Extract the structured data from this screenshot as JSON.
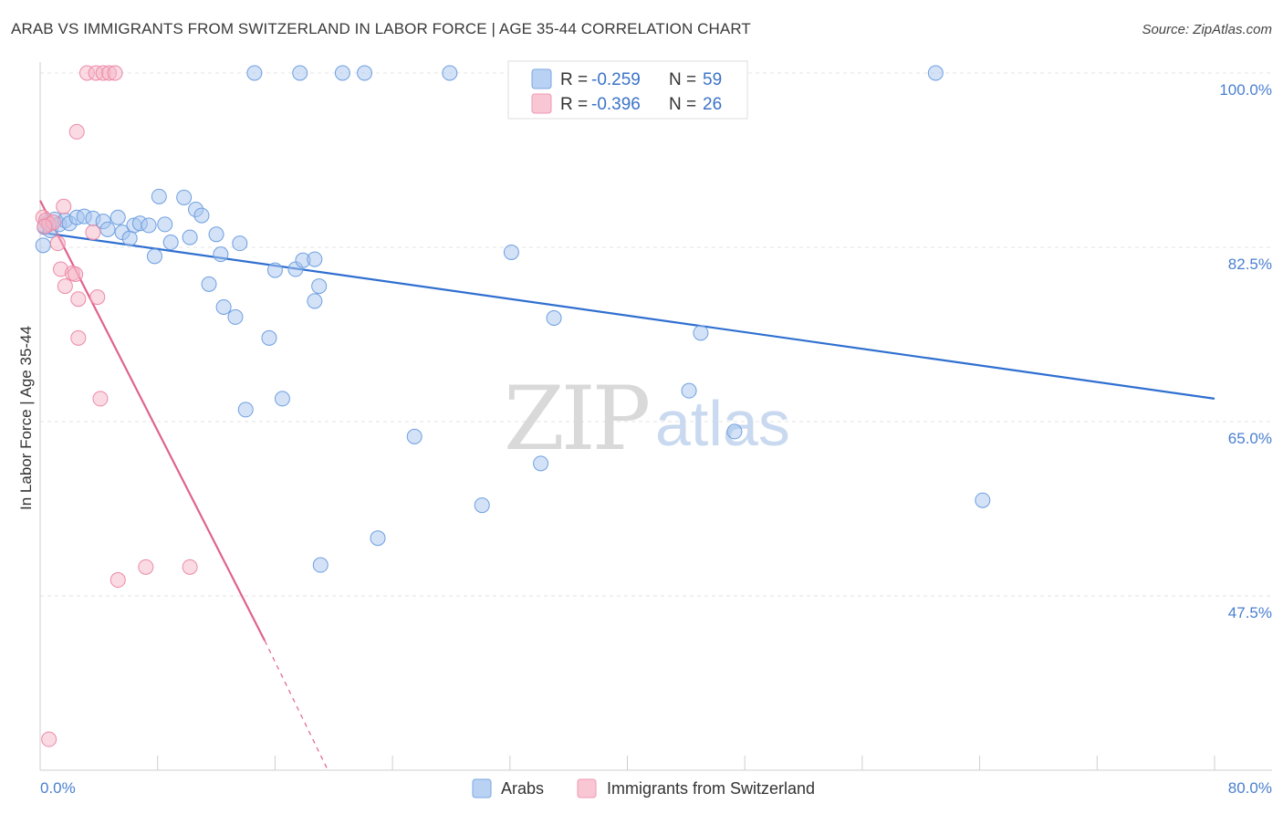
{
  "header": {
    "title": "ARAB VS IMMIGRANTS FROM SWITZERLAND IN LABOR FORCE | AGE 35-44 CORRELATION CHART",
    "source": "Source: ZipAtlas.com"
  },
  "watermark": {
    "part1": "ZIP",
    "part2": "atlas"
  },
  "legend": {
    "rows": [
      {
        "r_label": "R = ",
        "r_value": "-0.259",
        "n_label": "N = ",
        "n_value": "59",
        "color": "#a8c6f0"
      },
      {
        "r_label": "R = ",
        "r_value": "-0.396",
        "n_label": "N = ",
        "n_value": "26",
        "color": "#f6b6c8"
      }
    ]
  },
  "bottom_legend": {
    "series1": "Arabs",
    "series2": "Immigrants from Switzerland"
  },
  "chart_data": {
    "type": "scatter",
    "title": "ARAB VS IMMIGRANTS FROM SWITZERLAND IN LABOR FORCE | AGE 35-44 CORRELATION CHART",
    "xlabel": "",
    "ylabel": "In Labor Force | Age 35-44",
    "xlim": [
      0,
      80
    ],
    "ylim": [
      30,
      100
    ],
    "x_tick_labels": [
      "0.0%",
      "80.0%"
    ],
    "y_ticks": [
      {
        "value": 100,
        "label": "100.0%"
      },
      {
        "value": 82.5,
        "label": "82.5%"
      },
      {
        "value": 65,
        "label": "65.0%"
      },
      {
        "value": 47.5,
        "label": "47.5%"
      }
    ],
    "grid": true,
    "series": [
      {
        "name": "Arabs",
        "color": "#a8c6f0",
        "stroke": "#6e9fe0",
        "trend": {
          "x": [
            0,
            80
          ],
          "y": [
            84.0,
            67.3
          ],
          "color": "#2f6fd0"
        },
        "points": [
          [
            0.3,
            84.5
          ],
          [
            0.5,
            85.0
          ],
          [
            0.7,
            84.2
          ],
          [
            1.0,
            85.3
          ],
          [
            1.3,
            84.8
          ],
          [
            1.7,
            85.2
          ],
          [
            2.0,
            84.9
          ],
          [
            2.5,
            85.5
          ],
          [
            3.0,
            85.6
          ],
          [
            3.6,
            85.4
          ],
          [
            4.3,
            85.1
          ],
          [
            4.6,
            84.3
          ],
          [
            5.3,
            85.5
          ],
          [
            5.6,
            84.0
          ],
          [
            6.1,
            83.4
          ],
          [
            6.4,
            84.7
          ],
          [
            6.8,
            84.9
          ],
          [
            7.4,
            84.7
          ],
          [
            7.8,
            81.6
          ],
          [
            8.1,
            87.6
          ],
          [
            8.5,
            84.8
          ],
          [
            8.9,
            83.0
          ],
          [
            9.8,
            87.5
          ],
          [
            10.2,
            83.5
          ],
          [
            10.6,
            86.3
          ],
          [
            11.0,
            85.7
          ],
          [
            11.5,
            78.8
          ],
          [
            12.0,
            83.8
          ],
          [
            12.3,
            81.8
          ],
          [
            12.5,
            76.5
          ],
          [
            13.3,
            75.5
          ],
          [
            13.6,
            82.9
          ],
          [
            14.0,
            66.2
          ],
          [
            14.6,
            100.0
          ],
          [
            15.6,
            73.4
          ],
          [
            16.0,
            80.2
          ],
          [
            16.5,
            67.3
          ],
          [
            17.4,
            80.3
          ],
          [
            17.7,
            100.0
          ],
          [
            17.9,
            81.2
          ],
          [
            18.7,
            81.3
          ],
          [
            18.7,
            77.1
          ],
          [
            19.0,
            78.6
          ],
          [
            19.1,
            50.6
          ],
          [
            20.6,
            100.0
          ],
          [
            22.1,
            100.0
          ],
          [
            23.0,
            53.3
          ],
          [
            25.5,
            63.5
          ],
          [
            27.9,
            100.0
          ],
          [
            30.1,
            56.6
          ],
          [
            32.1,
            82.0
          ],
          [
            34.1,
            60.8
          ],
          [
            35.0,
            75.4
          ],
          [
            44.2,
            68.1
          ],
          [
            45.0,
            73.9
          ],
          [
            47.3,
            64.0
          ],
          [
            61.0,
            100.0
          ],
          [
            64.2,
            57.1
          ],
          [
            0.2,
            82.7
          ]
        ]
      },
      {
        "name": "Immigrants from Switzerland",
        "color": "#f6b6c8",
        "stroke": "#ec8aa6",
        "trend": {
          "x": [
            0,
            15.3
          ],
          "y": [
            87.2,
            43.0
          ],
          "color": "#e0628e",
          "dashed_to": {
            "x": 19.6,
            "y": 30
          }
        },
        "points": [
          [
            0.2,
            85.5
          ],
          [
            0.4,
            85.2
          ],
          [
            0.6,
            84.8
          ],
          [
            0.9,
            85.0
          ],
          [
            1.2,
            82.9
          ],
          [
            1.4,
            80.3
          ],
          [
            1.6,
            86.6
          ],
          [
            2.2,
            79.9
          ],
          [
            2.4,
            79.8
          ],
          [
            2.6,
            73.4
          ],
          [
            3.2,
            100.0
          ],
          [
            3.6,
            84.0
          ],
          [
            3.8,
            100.0
          ],
          [
            3.9,
            77.5
          ],
          [
            4.1,
            67.3
          ],
          [
            4.3,
            100.0
          ],
          [
            4.7,
            100.0
          ],
          [
            5.1,
            100.0
          ],
          [
            2.5,
            94.1
          ],
          [
            2.6,
            77.3
          ],
          [
            1.7,
            78.6
          ],
          [
            0.6,
            33.1
          ],
          [
            5.3,
            49.1
          ],
          [
            7.2,
            50.4
          ],
          [
            10.2,
            50.4
          ],
          [
            0.3,
            84.6
          ]
        ]
      }
    ]
  }
}
